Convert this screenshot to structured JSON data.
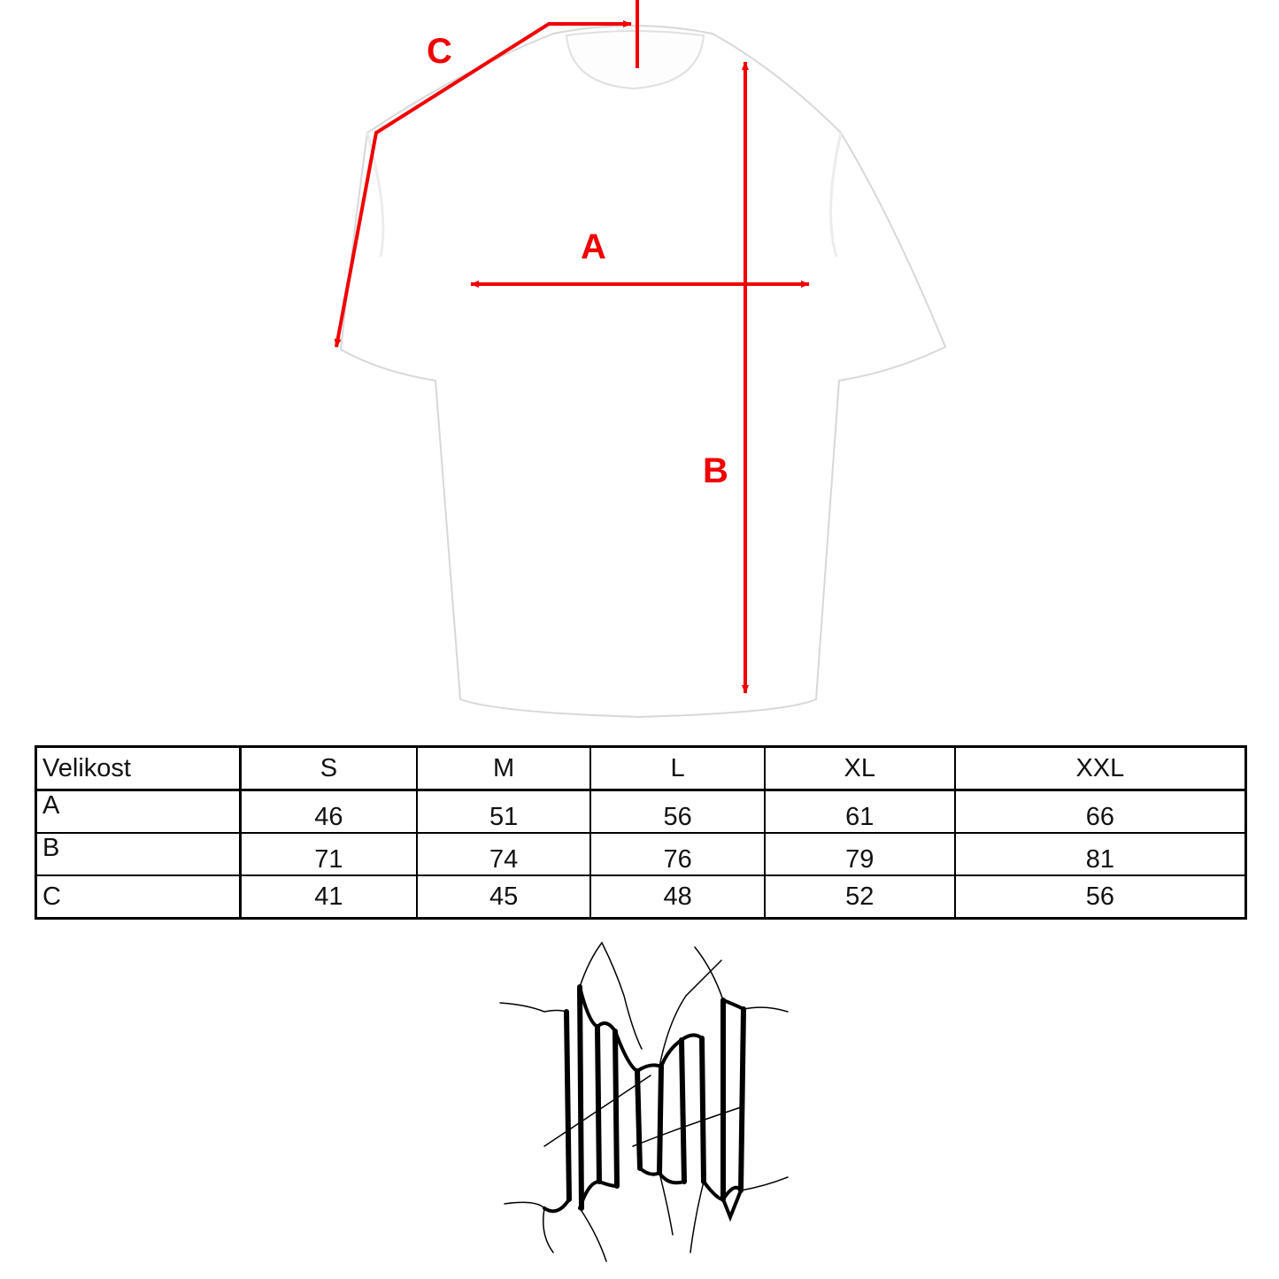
{
  "diagram": {
    "labels": {
      "a": "A",
      "b": "B",
      "c": "C"
    },
    "arrow_color": "#f00000"
  },
  "size_table": {
    "header": [
      "Velikost",
      "S",
      "M",
      "L",
      "XL",
      "XXL"
    ],
    "rows": [
      {
        "label": "A",
        "values": [
          "46",
          "51",
          "56",
          "61",
          "66"
        ]
      },
      {
        "label": "B",
        "values": [
          "71",
          "74",
          "76",
          "79",
          "81"
        ]
      },
      {
        "label": "C",
        "values": [
          "41",
          "45",
          "48",
          "52",
          "56"
        ]
      }
    ]
  },
  "logo": {
    "name": "brand-logo",
    "icon": "cracked-blackletter-logo"
  }
}
